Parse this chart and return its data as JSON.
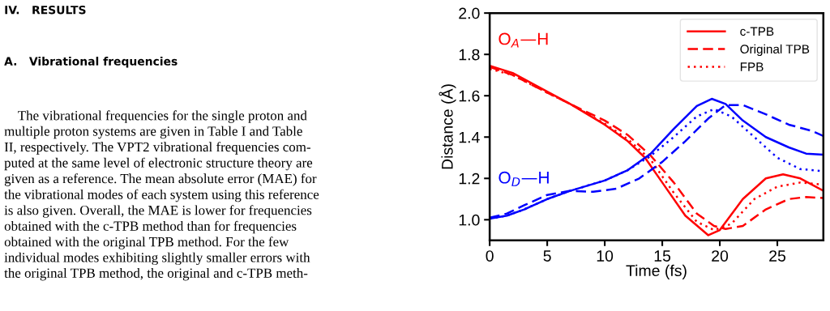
{
  "chart_data": {
    "type": "line",
    "xlabel": "Time (fs)",
    "ylabel": "Distance (Å)",
    "xlim": [
      0,
      29
    ],
    "ylim": [
      0.9,
      2.0
    ],
    "xticks": [
      0,
      5,
      10,
      15,
      20,
      25
    ],
    "yticks": [
      {
        "value": 1,
        "label": "1.0"
      },
      1.2,
      1.4,
      1.6,
      1.8,
      {
        "value": 2,
        "label": "2.0"
      }
    ],
    "grid": false,
    "legend": "top right",
    "marker": "none",
    "series": [
      {
        "name": "c-TPB",
        "color": "#ff0000",
        "line_style": "solid",
        "x": [
          0,
          2,
          5,
          7,
          10,
          12,
          13.5,
          15,
          17,
          19,
          20,
          22,
          24,
          25.5,
          27,
          29
        ],
        "values": [
          1.745,
          1.71,
          1.62,
          1.56,
          1.46,
          1.38,
          1.3,
          1.18,
          1.02,
          0.925,
          0.95,
          1.1,
          1.2,
          1.22,
          1.2,
          1.14
        ]
      },
      {
        "name": "Original TPB",
        "color": "#ff0000",
        "line_style": "dashed",
        "x": [
          0,
          2,
          5,
          7,
          10,
          12,
          14,
          16,
          18,
          19.5,
          20.5,
          22,
          24,
          26,
          27.5,
          29
        ],
        "values": [
          1.74,
          1.7,
          1.615,
          1.56,
          1.48,
          1.41,
          1.31,
          1.18,
          1.03,
          0.97,
          0.955,
          0.97,
          1.05,
          1.1,
          1.11,
          1.105
        ]
      },
      {
        "name": "FPB",
        "color": "#ff0000",
        "line_style": "dotted",
        "x": [
          0,
          2,
          5,
          7,
          10,
          12,
          14,
          16,
          18,
          19.5,
          21,
          23,
          25,
          27,
          29
        ],
        "values": [
          1.73,
          1.7,
          1.615,
          1.56,
          1.465,
          1.39,
          1.29,
          1.13,
          0.99,
          0.95,
          0.98,
          1.1,
          1.16,
          1.18,
          1.17
        ]
      },
      {
        "color": "#0000ff",
        "line_style": "solid",
        "x": [
          0,
          1.5,
          3,
          5,
          7,
          10,
          12,
          14,
          16,
          18,
          19.3,
          20.5,
          22,
          24,
          26,
          27.5,
          29
        ],
        "values": [
          1.005,
          1.02,
          1.05,
          1.1,
          1.14,
          1.19,
          1.24,
          1.32,
          1.44,
          1.55,
          1.585,
          1.56,
          1.48,
          1.4,
          1.35,
          1.32,
          1.315
        ]
      },
      {
        "color": "#0000ff",
        "line_style": "dashed",
        "x": [
          0,
          1.5,
          3,
          5,
          7,
          9,
          11,
          13,
          15,
          17,
          19,
          20.5,
          22,
          24,
          26,
          28,
          29
        ],
        "values": [
          1.01,
          1.03,
          1.07,
          1.12,
          1.14,
          1.135,
          1.15,
          1.2,
          1.28,
          1.38,
          1.49,
          1.555,
          1.555,
          1.51,
          1.46,
          1.43,
          1.405
        ]
      },
      {
        "color": "#0000ff",
        "line_style": "dotted",
        "x": [
          0,
          1.5,
          3,
          5,
          7,
          10,
          12,
          14,
          16,
          18,
          19.5,
          21,
          23,
          25,
          27,
          29
        ],
        "values": [
          1.005,
          1.02,
          1.05,
          1.1,
          1.14,
          1.19,
          1.24,
          1.31,
          1.4,
          1.5,
          1.535,
          1.5,
          1.4,
          1.3,
          1.245,
          1.235
        ]
      }
    ],
    "annotations": [
      "O$_{A}$—H",
      "O$_{D}$—H",
      "IV.   RESULTS",
      "A.   Vibrational frequencies",
      "    The vibrational frequencies for the single proton and\nmultiple proton systems are given in Table I and Table\nII, respectively. The VPT2 vibrational frequencies com-\nputed at the same level of electronic structure theory are\ngiven as a reference. The mean absolute error (MAE) for\nthe vibrational modes of each system using this reference\nis also given. Overall, the MAE is lower for frequencies\nobtained with the c-TPB method than for frequencies\nobtained with the original TPB method. For the few\nindividual modes exhibiting slightly smaller errors with\nthe original TPB method, the original and c-TPB meth-"
    ]
  }
}
